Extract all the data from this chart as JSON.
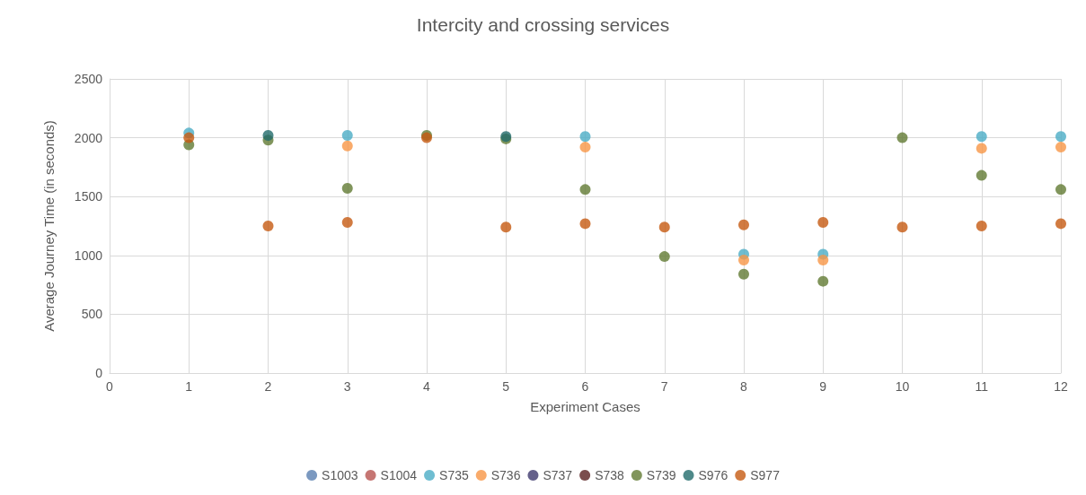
{
  "chart_data": {
    "type": "scatter",
    "title": "Intercity and crossing services",
    "xlabel": "Experiment Cases",
    "ylabel": "Average Journey Time (in seconds)",
    "x": [
      1,
      2,
      3,
      4,
      5,
      6,
      7,
      8,
      9,
      10,
      11,
      12
    ],
    "xlim": [
      0,
      12
    ],
    "xticks": [
      0,
      1,
      2,
      3,
      4,
      5,
      6,
      7,
      8,
      9,
      10,
      11,
      12
    ],
    "ylim": [
      0,
      2500
    ],
    "yticks": [
      0,
      500,
      1000,
      1500,
      2000,
      2500
    ],
    "grid": true,
    "legend": "bottom",
    "marker": "circle",
    "series": [
      {
        "name": "S1003",
        "color": "#5a7fb0",
        "values": [
          null,
          null,
          null,
          null,
          null,
          null,
          null,
          null,
          null,
          null,
          null,
          null
        ]
      },
      {
        "name": "S1004",
        "color": "#b85450",
        "values": [
          null,
          null,
          null,
          null,
          null,
          null,
          null,
          null,
          null,
          null,
          null,
          null
        ]
      },
      {
        "name": "S735",
        "color": "#4bacc6",
        "values": [
          2040,
          null,
          2020,
          null,
          null,
          2010,
          null,
          1010,
          1010,
          null,
          2010,
          2010
        ]
      },
      {
        "name": "S736",
        "color": "#f79646",
        "values": [
          null,
          null,
          1930,
          null,
          null,
          1920,
          null,
          960,
          960,
          null,
          1910,
          1920
        ]
      },
      {
        "name": "S737",
        "color": "#3f3a6e",
        "values": [
          null,
          null,
          null,
          null,
          null,
          null,
          null,
          null,
          null,
          null,
          null,
          null
        ]
      },
      {
        "name": "S738",
        "color": "#5a2020",
        "values": [
          null,
          null,
          null,
          null,
          null,
          null,
          null,
          null,
          null,
          null,
          null,
          null
        ]
      },
      {
        "name": "S739",
        "color": "#617a33",
        "values": [
          1940,
          1980,
          1570,
          2020,
          1990,
          1560,
          990,
          840,
          780,
          2000,
          1680,
          1560
        ]
      },
      {
        "name": "S976",
        "color": "#226b6b",
        "values": [
          null,
          2020,
          null,
          null,
          2010,
          null,
          null,
          null,
          null,
          null,
          null,
          null
        ]
      },
      {
        "name": "S977",
        "color": "#c55a11",
        "values": [
          2000,
          1250,
          1280,
          2000,
          1240,
          1270,
          1240,
          1260,
          1280,
          1240,
          1250,
          1270
        ]
      }
    ]
  }
}
